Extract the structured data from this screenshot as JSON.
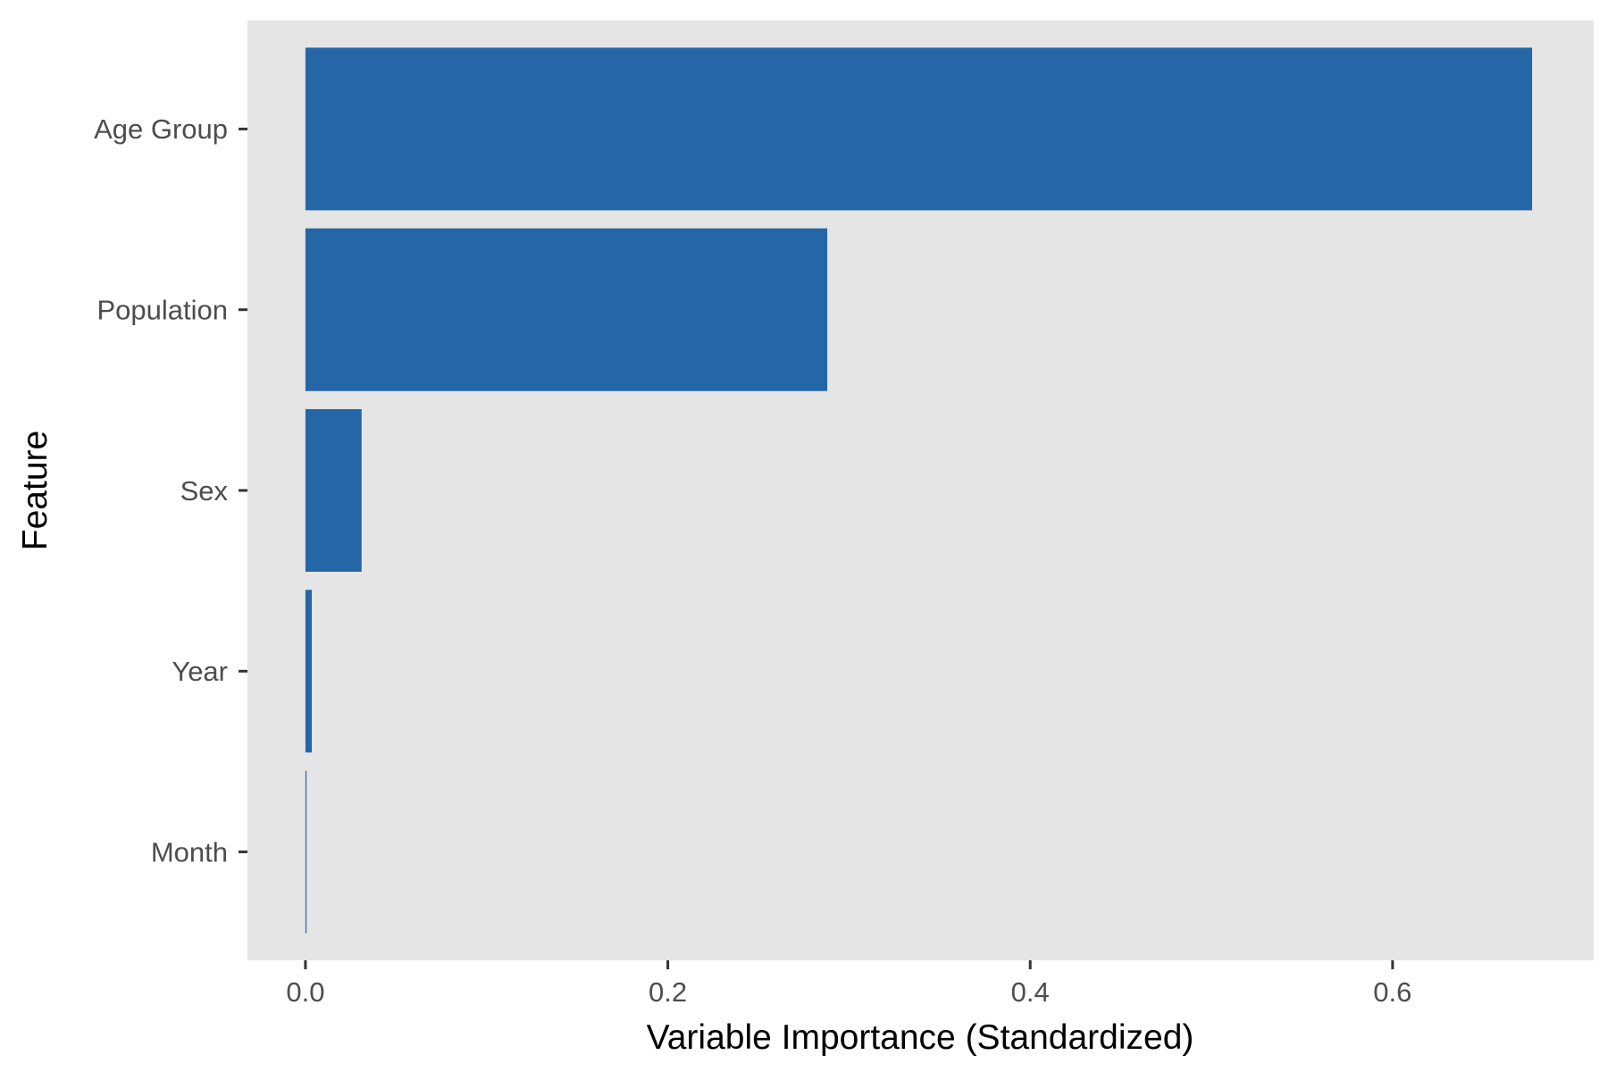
{
  "chart_data": {
    "type": "bar",
    "orientation": "horizontal",
    "title": "",
    "xlabel": "Variable Importance (Standardized)",
    "ylabel": "Feature",
    "categories": [
      "Age Group",
      "Population",
      "Sex",
      "Year",
      "Month"
    ],
    "values": [
      0.677,
      0.288,
      0.031,
      0.0035,
      0.0006
    ],
    "xlim": [
      -0.032,
      0.711
    ],
    "xticks": [
      0.0,
      0.2,
      0.4,
      0.6
    ],
    "xtick_labels": [
      "0.0",
      "0.2",
      "0.4",
      "0.6"
    ],
    "grid": false,
    "legend": "none",
    "colors": {
      "bar": "#2566A6",
      "panel": "#E5E5E5",
      "background": "#FFFFFF",
      "tick_text": "#4D4D4D",
      "tick_mark": "#333333"
    }
  }
}
